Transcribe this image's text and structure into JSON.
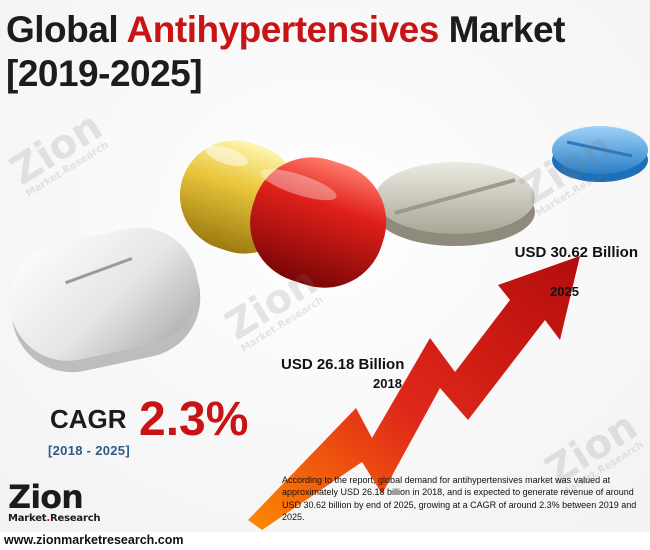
{
  "title": {
    "word1": "Global",
    "word2": "Antihypertensives",
    "word3": "Market",
    "line2": "[2019-2025]"
  },
  "annotations": {
    "end_value": "USD 30.62 Billion",
    "end_year": "2025",
    "start_value": "USD 26.18 Billion",
    "start_year": "2018"
  },
  "cagr": {
    "label": "CAGR",
    "value": "2.3%",
    "period": "[2018 - 2025]"
  },
  "description": "According to the report, global demand for antihypertensives market was valued at approximately USD 26.18 billion in 2018, and is expected to generate revenue of around USD 30.62 billion by end of 2025, growing at a CAGR of around 2.3% between 2019 and 2025.",
  "logo": {
    "name": "Zion",
    "sub1": "Market",
    "sub2": ".",
    "sub3": "Research"
  },
  "footer": {
    "url": "www.zionmarketresearch.com"
  },
  "colors": {
    "accent": "#c81414",
    "text": "#1c1c1c",
    "period": "#2e5a84"
  }
}
